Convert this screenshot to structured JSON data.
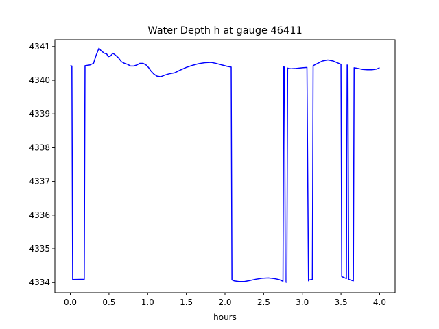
{
  "chart_data": {
    "type": "line",
    "title": "Water Depth h at gauge 46411",
    "xlabel": "hours",
    "ylabel": "",
    "xlim": [
      -0.2,
      4.2
    ],
    "ylim": [
      4333.7,
      4341.2
    ],
    "xticks": [
      0.0,
      0.5,
      1.0,
      1.5,
      2.0,
      2.5,
      3.0,
      3.5,
      4.0
    ],
    "xtick_labels": [
      "0.0",
      "0.5",
      "1.0",
      "1.5",
      "2.0",
      "2.5",
      "3.0",
      "3.5",
      "4.0"
    ],
    "yticks": [
      4334,
      4335,
      4336,
      4337,
      4338,
      4339,
      4340,
      4341
    ],
    "ytick_labels": [
      "4334",
      "4335",
      "4336",
      "4337",
      "4338",
      "4339",
      "4340",
      "4341"
    ],
    "grid": false,
    "series": [
      {
        "color": "#0000ff",
        "x": [
          0.0,
          0.02,
          0.03,
          0.18,
          0.19,
          0.25,
          0.3,
          0.33,
          0.37,
          0.4,
          0.44,
          0.47,
          0.49,
          0.52,
          0.55,
          0.58,
          0.62,
          0.66,
          0.7,
          0.74,
          0.78,
          0.82,
          0.86,
          0.9,
          0.94,
          0.98,
          1.01,
          1.04,
          1.08,
          1.12,
          1.17,
          1.22,
          1.28,
          1.35,
          1.42,
          1.5,
          1.58,
          1.66,
          1.74,
          1.82,
          1.88,
          1.93,
          1.98,
          2.03,
          2.08,
          2.09,
          2.12,
          2.18,
          2.25,
          2.32,
          2.4,
          2.48,
          2.56,
          2.64,
          2.7,
          2.74,
          2.75,
          2.76,
          2.77,
          2.78,
          2.79,
          2.8,
          2.81,
          2.82,
          2.86,
          2.92,
          3.0,
          3.06,
          3.08,
          3.09,
          3.13,
          3.14,
          3.2,
          3.26,
          3.33,
          3.4,
          3.47,
          3.5,
          3.51,
          3.57,
          3.58,
          3.59,
          3.6,
          3.62,
          3.66,
          3.67,
          3.72,
          3.78,
          3.84,
          3.9,
          3.96,
          4.0
        ],
        "y": [
          4340.43,
          4340.42,
          4334.09,
          4334.1,
          4340.43,
          4340.45,
          4340.5,
          4340.72,
          4340.95,
          4340.87,
          4340.8,
          4340.78,
          4340.7,
          4340.72,
          4340.8,
          4340.75,
          4340.67,
          4340.55,
          4340.5,
          4340.47,
          4340.42,
          4340.42,
          4340.45,
          4340.5,
          4340.5,
          4340.45,
          4340.38,
          4340.28,
          4340.18,
          4340.12,
          4340.1,
          4340.15,
          4340.19,
          4340.22,
          4340.3,
          4340.38,
          4340.44,
          4340.49,
          4340.52,
          4340.53,
          4340.5,
          4340.47,
          4340.44,
          4340.41,
          4340.39,
          4334.08,
          4334.05,
          4334.03,
          4334.03,
          4334.06,
          4334.1,
          4334.13,
          4334.14,
          4334.12,
          4334.09,
          4334.05,
          4334.04,
          4340.4,
          4340.38,
          4334.02,
          4334.01,
          4334.01,
          4340.36,
          4340.35,
          4340.34,
          4340.35,
          4340.37,
          4340.38,
          4334.05,
          4334.08,
          4334.1,
          4340.43,
          4340.5,
          4340.57,
          4340.6,
          4340.57,
          4340.5,
          4340.47,
          4334.18,
          4334.12,
          4340.45,
          4340.44,
          4334.1,
          4334.08,
          4334.05,
          4340.37,
          4340.35,
          4340.32,
          4340.31,
          4340.31,
          4340.33,
          4340.37
        ]
      }
    ]
  }
}
